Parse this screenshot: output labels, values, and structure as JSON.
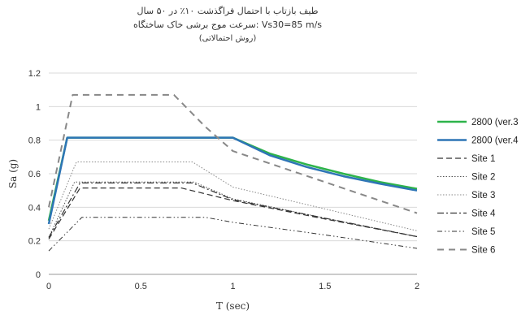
{
  "chart_data": {
    "type": "line",
    "title_lines": [
      "طیف بازتاب با احتمال فراگذشت ۱۰٪ در ۵۰ سال",
      "سرعت موج برشی خاک ساختگاه: Vs30=85 m/s",
      "(روش احتمالاتی)"
    ],
    "xlabel": "T (sec)",
    "ylabel": "Sa (g)",
    "xlim": [
      0,
      2
    ],
    "ylim": [
      0,
      1.2
    ],
    "xticks": [
      "0",
      "0.5",
      "1",
      "1.5",
      "2"
    ],
    "yticks": [
      "0",
      "0.2",
      "0.4",
      "0.6",
      "0.8",
      "1",
      "1.2"
    ],
    "grid": "horizontal",
    "legend_position": "right",
    "series": [
      {
        "name": "2800 (ver.3",
        "color": "#2db34a",
        "dash": "solid",
        "width": 2.5,
        "x": [
          0,
          0.1,
          1.0,
          1.2,
          1.4,
          1.6,
          1.8,
          2.0
        ],
        "y": [
          0.32,
          0.815,
          0.815,
          0.72,
          0.655,
          0.6,
          0.55,
          0.51
        ]
      },
      {
        "name": "2800 (ver.4",
        "color": "#2e75b6",
        "dash": "solid",
        "width": 2.5,
        "x": [
          0,
          0.1,
          1.0,
          1.2,
          1.4,
          1.6,
          1.8,
          2.0
        ],
        "y": [
          0.3,
          0.815,
          0.815,
          0.71,
          0.64,
          0.585,
          0.54,
          0.5
        ]
      },
      {
        "name": "Site 1",
        "color": "#333333",
        "dash": "long",
        "width": 1.2,
        "x": [
          0,
          0.17,
          0.72,
          1.0,
          1.5,
          2.0
        ],
        "y": [
          0.21,
          0.515,
          0.515,
          0.44,
          0.33,
          0.225
        ]
      },
      {
        "name": "Site 2",
        "color": "#555555",
        "dash": "dotted",
        "width": 1.0,
        "x": [
          0,
          0.14,
          0.79,
          1.0,
          1.5,
          2.0
        ],
        "y": [
          0.22,
          0.55,
          0.55,
          0.45,
          0.335,
          0.225
        ]
      },
      {
        "name": "Site 3",
        "color": "#888888",
        "dash": "dotted",
        "width": 1.0,
        "x": [
          0,
          0.15,
          0.78,
          1.0,
          1.5,
          2.0
        ],
        "y": [
          0.27,
          0.67,
          0.67,
          0.52,
          0.39,
          0.26
        ]
      },
      {
        "name": "Site 4",
        "color": "#333333",
        "dash": "dashdot",
        "width": 1.2,
        "x": [
          0,
          0.17,
          0.78,
          1.0,
          1.5,
          2.0
        ],
        "y": [
          0.22,
          0.545,
          0.545,
          0.445,
          0.335,
          0.225
        ]
      },
      {
        "name": "Site 5",
        "color": "#333333",
        "dash": "dashdotdot",
        "width": 1.0,
        "x": [
          0,
          0.18,
          0.85,
          1.0,
          1.5,
          2.0
        ],
        "y": [
          0.14,
          0.34,
          0.34,
          0.31,
          0.235,
          0.155
        ]
      },
      {
        "name": "Site 6",
        "color": "#888888",
        "dash": "wide",
        "width": 2.0,
        "x": [
          0,
          0.13,
          0.68,
          0.85,
          1.0,
          1.5,
          2.0
        ],
        "y": [
          0.4,
          1.07,
          1.07,
          0.88,
          0.735,
          0.55,
          0.365
        ]
      }
    ]
  }
}
